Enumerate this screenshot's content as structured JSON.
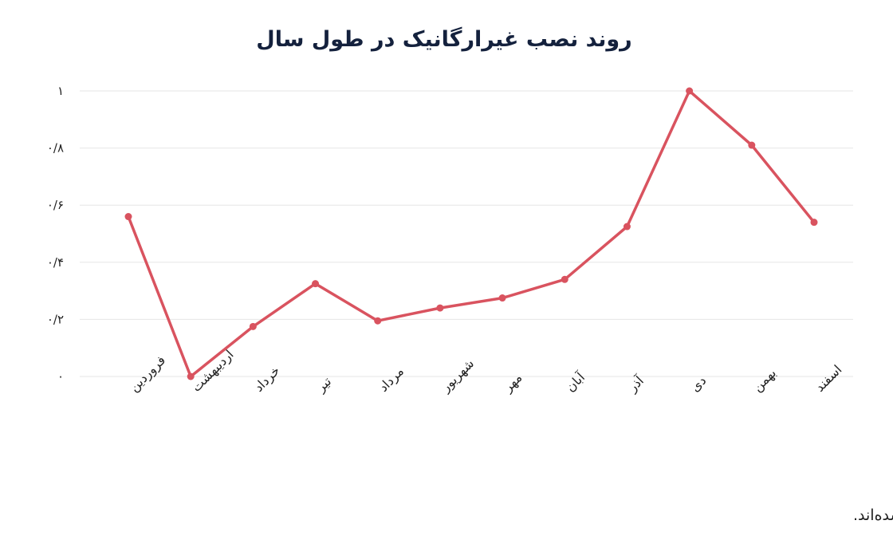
{
  "chart_data": {
    "type": "line",
    "title": "روند نصب غیرارگانیک در طول سال",
    "xlabel": "",
    "ylabel": "",
    "categories": [
      "فروردین",
      "اردیبهشت",
      "خرداد",
      "تیر",
      "مرداد",
      "شهریور",
      "مهر",
      "آبان",
      "آذر",
      "دی",
      "بهمن",
      "اسفند"
    ],
    "series": [
      {
        "values": [
          0.56,
          0.0,
          0.175,
          0.325,
          0.195,
          0.24,
          0.275,
          0.34,
          0.525,
          1.0,
          0.81,
          0.54
        ]
      }
    ],
    "ylim": [
      0,
      1
    ],
    "yticks": [
      0,
      0.2,
      0.4,
      0.6,
      0.8,
      1
    ],
    "ytick_labels": [
      "۰",
      "۰/۲",
      "۰/۴",
      "۰/۶",
      "۰/۸",
      "۱"
    ],
    "grid": true,
    "legend": "none",
    "line_color": "#d9535f",
    "footnote": "* تمامی اعداد در این نمودار بین صفر و یک نرمال شده‌اند."
  }
}
